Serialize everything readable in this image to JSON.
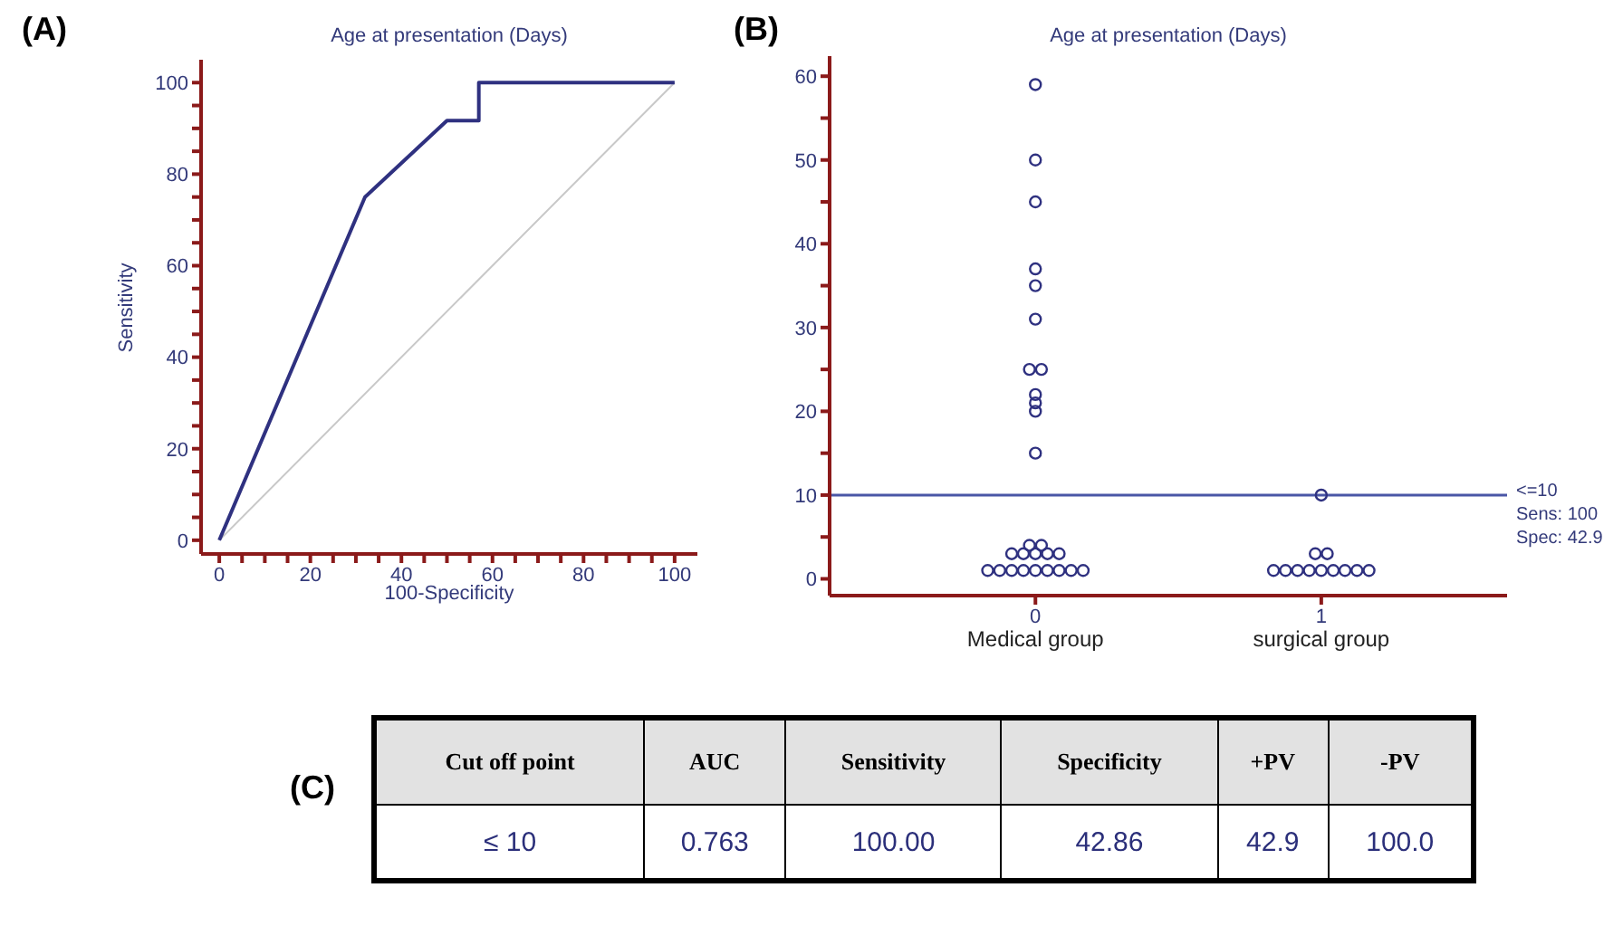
{
  "chart_data": [
    {
      "type": "line",
      "title": "Age at presentation (Days)",
      "xlabel": "100-Specificity",
      "ylabel": "Sensitivity",
      "annotations": [
        "(A)"
      ],
      "marker": "none",
      "xlim": [
        -4,
        105
      ],
      "ylim": [
        -3,
        105
      ],
      "xticks": [
        0,
        {
          "value": 5,
          "label": null
        },
        {
          "value": 10,
          "label": null
        },
        {
          "value": 15,
          "label": null
        },
        20,
        {
          "value": 25,
          "label": null
        },
        {
          "value": 30,
          "label": null
        },
        {
          "value": 35,
          "label": null
        },
        40,
        {
          "value": 45,
          "label": null
        },
        {
          "value": 50,
          "label": null
        },
        {
          "value": 55,
          "label": null
        },
        60,
        {
          "value": 65,
          "label": null
        },
        {
          "value": 70,
          "label": null
        },
        {
          "value": 75,
          "label": null
        },
        80,
        {
          "value": 85,
          "label": null
        },
        {
          "value": 90,
          "label": null
        },
        {
          "value": 95,
          "label": null
        },
        100
      ],
      "yticks": [
        0,
        {
          "value": 5,
          "label": null
        },
        {
          "value": 10,
          "label": null
        },
        {
          "value": 15,
          "label": null
        },
        20,
        {
          "value": 25,
          "label": null
        },
        {
          "value": 30,
          "label": null
        },
        {
          "value": 35,
          "label": null
        },
        40,
        {
          "value": 45,
          "label": null
        },
        {
          "value": 50,
          "label": null
        },
        {
          "value": 55,
          "label": null
        },
        60,
        {
          "value": 65,
          "label": null
        },
        {
          "value": 70,
          "label": null
        },
        {
          "value": 75,
          "label": null
        },
        80,
        {
          "value": 85,
          "label": null
        },
        {
          "value": 90,
          "label": null
        },
        {
          "value": 95,
          "label": null
        },
        100
      ],
      "series": [
        {
          "type": "line",
          "color": "#c8c8c8",
          "x": [
            0,
            100
          ],
          "values": [
            0,
            100
          ]
        },
        {
          "type": "line",
          "color": "#2f3180",
          "x": [
            0,
            32,
            50,
            57,
            57,
            100
          ],
          "values": [
            0,
            75,
            91.7,
            91.7,
            100,
            100
          ]
        }
      ]
    },
    {
      "type": "scatter",
      "title": "Age at presentation (Days)",
      "marker": "circle",
      "annotations": [
        "(B)",
        "Medical group",
        "surgical group",
        "Sens: 100",
        "Spec: 42.9"
      ],
      "xlim": [
        -0.72,
        1.65
      ],
      "ylim": [
        -2,
        62.4
      ],
      "xticks": [
        0,
        1
      ],
      "yticks": [
        0,
        {
          "value": 5,
          "label": null
        },
        10,
        {
          "value": 15,
          "label": null
        },
        20,
        {
          "value": 25,
          "label": null
        },
        30,
        {
          "value": 35,
          "label": null
        },
        40,
        {
          "value": 45,
          "label": null
        },
        50,
        {
          "value": 55,
          "label": null
        },
        60
      ],
      "ref_lines": [
        {
          "axis": "y",
          "value": 10,
          "label": "<=10",
          "color": "#4a56a6"
        }
      ],
      "series": [
        {
          "color": "#2f3180",
          "x": [
            0,
            0,
            0,
            0,
            0,
            0,
            -0.021,
            0.021,
            0,
            0,
            0,
            0,
            -0.021,
            0.021,
            -0.083,
            -0.042,
            0,
            0.042,
            0.083,
            -0.167,
            -0.125,
            -0.083,
            -0.042,
            0,
            0.042,
            0.083,
            0.125,
            0.167
          ],
          "values": [
            59,
            50,
            45,
            37,
            35,
            31,
            25,
            25,
            22,
            21,
            20,
            15,
            4,
            4,
            3,
            3,
            3,
            3,
            3,
            1,
            1,
            1,
            1,
            1,
            1,
            1,
            1,
            1
          ]
        },
        {
          "color": "#2f3180",
          "x": [
            1,
            0.979,
            1.021,
            0.833,
            0.875,
            0.917,
            0.958,
            1,
            1.042,
            1.083,
            1.125,
            1.167
          ],
          "values": [
            10,
            3,
            3,
            1,
            1,
            1,
            1,
            1,
            1,
            1,
            1,
            1
          ]
        }
      ]
    },
    {
      "type": "other",
      "annotations": [
        "(C)",
        "≤ 10",
        "0.763",
        "100.00",
        "42.86",
        "42.9",
        "100.0"
      ],
      "categories": [
        "Cut off point",
        "AUC",
        "Sensitivity",
        "Specificity",
        "+PV",
        "-PV"
      ]
    }
  ]
}
